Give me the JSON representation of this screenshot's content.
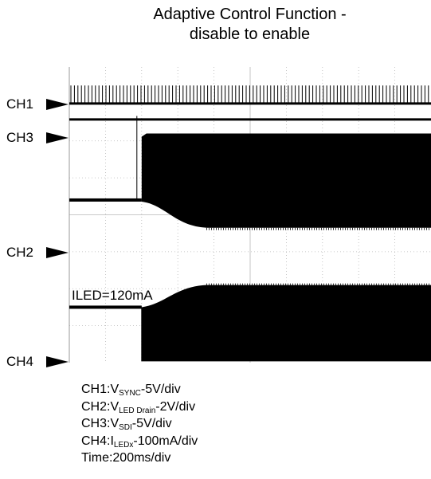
{
  "chart_data": {
    "type": "line",
    "title_lines": [
      "Adaptive Control Function -",
      "disable to enable"
    ],
    "grid": true,
    "grid_divisions": {
      "horizontal": 10,
      "vertical": 8
    },
    "time_per_div": "200ms/div",
    "time_range_div": [
      0,
      10
    ],
    "channels": [
      {
        "name": "CH1",
        "signal": "VSYNC",
        "scale": "5V/div",
        "marker_div": 7.0,
        "description": "square-wave sync pulses, high level about 0.5 div"
      },
      {
        "name": "CH3",
        "signal": "VSDI",
        "scale": "5V/div",
        "marker_div": 6.25,
        "low_div": 4.4,
        "high_div": 6.2,
        "step_time_div": 2.0
      },
      {
        "name": "CH2",
        "signal": "VLED Drain",
        "scale": "2V/div",
        "marker_div": 3.3,
        "enable_time_div": 2.0,
        "settled_time_div": 3.8,
        "before_div": 4.4,
        "after_div": 3.65,
        "pulsed_after_enable": true
      },
      {
        "name": "CH4",
        "signal": "ILEDx",
        "scale": "100mA/div",
        "marker_div": 0.1,
        "enable_time_div": 2.0,
        "ramp_start_div": 2.0,
        "settled_time_div": 3.8,
        "pulse_low_div": 0.1,
        "pulse_high_before_div": 1.5,
        "pulse_high_after_div": 2.1
      }
    ],
    "annotation": "ILED=120mA",
    "notes": [
      {
        "prefix": "CH1:V",
        "sub": "SYNC",
        "suffix": "-5V/div"
      },
      {
        "prefix": "CH2:V",
        "sub": "LED Drain",
        "suffix": "-2V/div"
      },
      {
        "prefix": "CH3:V",
        "sub": "SDI",
        "suffix": "-5V/div"
      },
      {
        "prefix": "CH4:I",
        "sub": "LEDx",
        "suffix": "-100mA/div"
      },
      {
        "prefix": "Time:200ms/div",
        "sub": "",
        "suffix": ""
      }
    ]
  }
}
